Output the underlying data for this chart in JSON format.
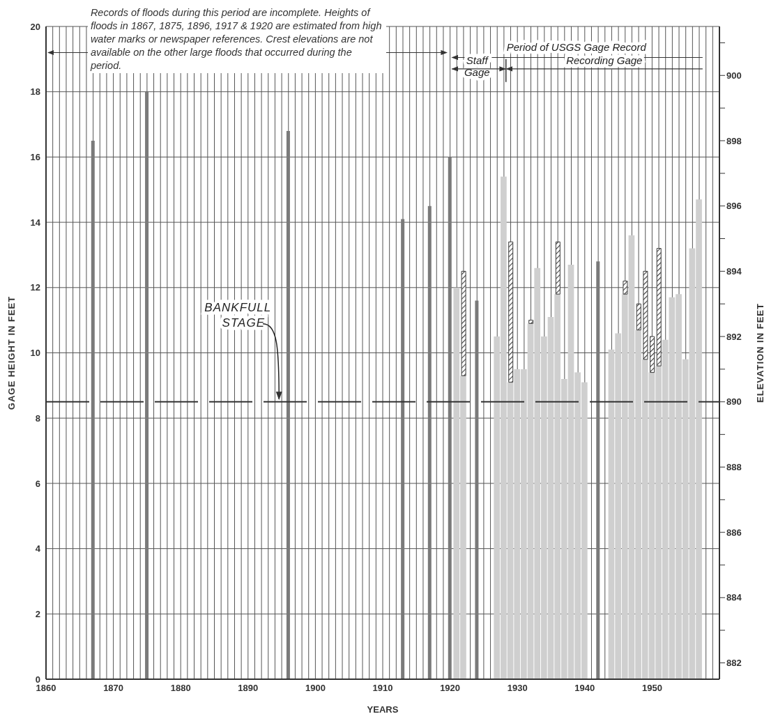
{
  "chart_data": {
    "type": "bar",
    "xlabel": "YEARS",
    "ylabel": "GAGE HEIGHT IN FEET",
    "y2label": "ELEVATION IN FEET",
    "xlim": [
      1860,
      1960
    ],
    "xticks": [
      1860,
      {
        "value": 1861,
        "label": null
      },
      {
        "value": 1862,
        "label": null
      },
      {
        "value": 1863,
        "label": null
      },
      {
        "value": 1864,
        "label": null
      },
      {
        "value": 1865,
        "label": null
      },
      {
        "value": 1866,
        "label": null
      },
      {
        "value": 1867,
        "label": null
      },
      {
        "value": 1868,
        "label": null
      },
      {
        "value": 1869,
        "label": null
      },
      1870,
      {
        "value": 1871,
        "label": null
      },
      {
        "value": 1872,
        "label": null
      },
      {
        "value": 1873,
        "label": null
      },
      {
        "value": 1874,
        "label": null
      },
      {
        "value": 1875,
        "label": null
      },
      {
        "value": 1876,
        "label": null
      },
      {
        "value": 1877,
        "label": null
      },
      {
        "value": 1878,
        "label": null
      },
      {
        "value": 1879,
        "label": null
      },
      1880,
      {
        "value": 1881,
        "label": null
      },
      {
        "value": 1882,
        "label": null
      },
      {
        "value": 1883,
        "label": null
      },
      {
        "value": 1884,
        "label": null
      },
      {
        "value": 1885,
        "label": null
      },
      {
        "value": 1886,
        "label": null
      },
      {
        "value": 1887,
        "label": null
      },
      {
        "value": 1888,
        "label": null
      },
      {
        "value": 1889,
        "label": null
      },
      1890,
      {
        "value": 1891,
        "label": null
      },
      {
        "value": 1892,
        "label": null
      },
      {
        "value": 1893,
        "label": null
      },
      {
        "value": 1894,
        "label": null
      },
      {
        "value": 1895,
        "label": null
      },
      {
        "value": 1896,
        "label": null
      },
      {
        "value": 1897,
        "label": null
      },
      {
        "value": 1898,
        "label": null
      },
      {
        "value": 1899,
        "label": null
      },
      1900,
      {
        "value": 1901,
        "label": null
      },
      {
        "value": 1902,
        "label": null
      },
      {
        "value": 1903,
        "label": null
      },
      {
        "value": 1904,
        "label": null
      },
      {
        "value": 1905,
        "label": null
      },
      {
        "value": 1906,
        "label": null
      },
      {
        "value": 1907,
        "label": null
      },
      {
        "value": 1908,
        "label": null
      },
      {
        "value": 1909,
        "label": null
      },
      1910,
      {
        "value": 1911,
        "label": null
      },
      {
        "value": 1912,
        "label": null
      },
      {
        "value": 1913,
        "label": null
      },
      {
        "value": 1914,
        "label": null
      },
      {
        "value": 1915,
        "label": null
      },
      {
        "value": 1916,
        "label": null
      },
      {
        "value": 1917,
        "label": null
      },
      {
        "value": 1918,
        "label": null
      },
      {
        "value": 1919,
        "label": null
      },
      1920,
      {
        "value": 1921,
        "label": null
      },
      {
        "value": 1922,
        "label": null
      },
      {
        "value": 1923,
        "label": null
      },
      {
        "value": 1924,
        "label": null
      },
      {
        "value": 1925,
        "label": null
      },
      {
        "value": 1926,
        "label": null
      },
      {
        "value": 1927,
        "label": null
      },
      {
        "value": 1928,
        "label": null
      },
      {
        "value": 1929,
        "label": null
      },
      1930,
      {
        "value": 1931,
        "label": null
      },
      {
        "value": 1932,
        "label": null
      },
      {
        "value": 1933,
        "label": null
      },
      {
        "value": 1934,
        "label": null
      },
      {
        "value": 1935,
        "label": null
      },
      {
        "value": 1936,
        "label": null
      },
      {
        "value": 1937,
        "label": null
      },
      {
        "value": 1938,
        "label": null
      },
      {
        "value": 1939,
        "label": null
      },
      1940,
      {
        "value": 1941,
        "label": null
      },
      {
        "value": 1942,
        "label": null
      },
      {
        "value": 1943,
        "label": null
      },
      {
        "value": 1944,
        "label": null
      },
      {
        "value": 1945,
        "label": null
      },
      {
        "value": 1946,
        "label": null
      },
      {
        "value": 1947,
        "label": null
      },
      {
        "value": 1948,
        "label": null
      },
      {
        "value": 1949,
        "label": null
      },
      1950,
      {
        "value": 1951,
        "label": null
      },
      {
        "value": 1952,
        "label": null
      },
      {
        "value": 1953,
        "label": null
      },
      {
        "value": 1954,
        "label": null
      },
      {
        "value": 1955,
        "label": null
      },
      {
        "value": 1956,
        "label": null
      },
      {
        "value": 1957,
        "label": null
      },
      {
        "value": 1958,
        "label": null
      },
      {
        "value": 1959,
        "label": null
      },
      {
        "value": 1960,
        "label": null
      }
    ],
    "ylim": [
      0,
      20
    ],
    "yticks": [
      0,
      2,
      4,
      6,
      8,
      10,
      12,
      14,
      16,
      18,
      20
    ],
    "y2lim": [
      881.5,
      901.5
    ],
    "y2ticks": [
      882,
      {
        "value": 883,
        "label": null
      },
      884,
      {
        "value": 885,
        "label": null
      },
      886,
      {
        "value": 887,
        "label": null
      },
      888,
      {
        "value": 889,
        "label": null
      },
      890,
      {
        "value": 891,
        "label": null
      },
      892,
      {
        "value": 893,
        "label": null
      },
      894,
      {
        "value": 895,
        "label": null
      },
      896,
      {
        "value": 897,
        "label": null
      },
      898,
      {
        "value": 899,
        "label": null
      },
      900,
      {
        "value": 901,
        "label": null
      }
    ],
    "grid": true,
    "series": [
      {
        "color": "#cfcfcf",
        "x": [
          1921,
          1922,
          1927,
          1928,
          1929,
          1930,
          1931,
          1932,
          1933,
          1934,
          1935,
          1936,
          1937,
          1938,
          1939,
          1940,
          1944,
          1945,
          1946,
          1947,
          1948,
          1949,
          1950,
          1951,
          1952,
          1953,
          1954,
          1955,
          1956,
          1957
        ],
        "values": [
          12.0,
          9.3,
          10.5,
          15.4,
          9.1,
          9.5,
          9.5,
          10.9,
          12.6,
          10.5,
          11.1,
          11.8,
          9.2,
          12.7,
          9.4,
          9.1,
          10.1,
          10.6,
          11.8,
          13.6,
          10.7,
          9.8,
          9.4,
          9.6,
          10.4,
          11.7,
          11.8,
          9.8,
          13.2,
          14.7
        ]
      },
      {
        "color": "#7a7a7a",
        "x": [
          1867,
          1875,
          1896,
          1913,
          1917,
          1920,
          1924,
          1942
        ],
        "values": [
          16.5,
          18.0,
          16.8,
          14.1,
          14.5,
          16.0,
          11.6,
          12.8
        ]
      },
      {
        "color": "#3a3a3a",
        "x": [
          1922,
          1929,
          1932,
          1936,
          1946,
          1948,
          1949,
          1950,
          1951
        ],
        "base": [
          9.3,
          9.1,
          10.9,
          11.8,
          11.8,
          10.7,
          9.8,
          9.4,
          9.6
        ],
        "values": [
          3.2,
          4.3,
          0.1,
          1.6,
          0.4,
          0.8,
          2.7,
          1.1,
          3.6
        ]
      }
    ],
    "ref_lines": [
      {
        "axis": "y",
        "value": 8.5,
        "label": "BANKFULL STAGE",
        "line_style": "dashed",
        "color": "#333333"
      }
    ],
    "annotations": [
      "Records of floods during this period are incomplete. Heights of floods in 1867, 1875, 1896, 1917 & 1920 are estimated from high water marks or newspaper references. Crest elevations are not available on the other large floods that occurred during the period.",
      "Period of USGS Gage Record",
      "Staff Gage",
      "Recording Gage"
    ]
  }
}
